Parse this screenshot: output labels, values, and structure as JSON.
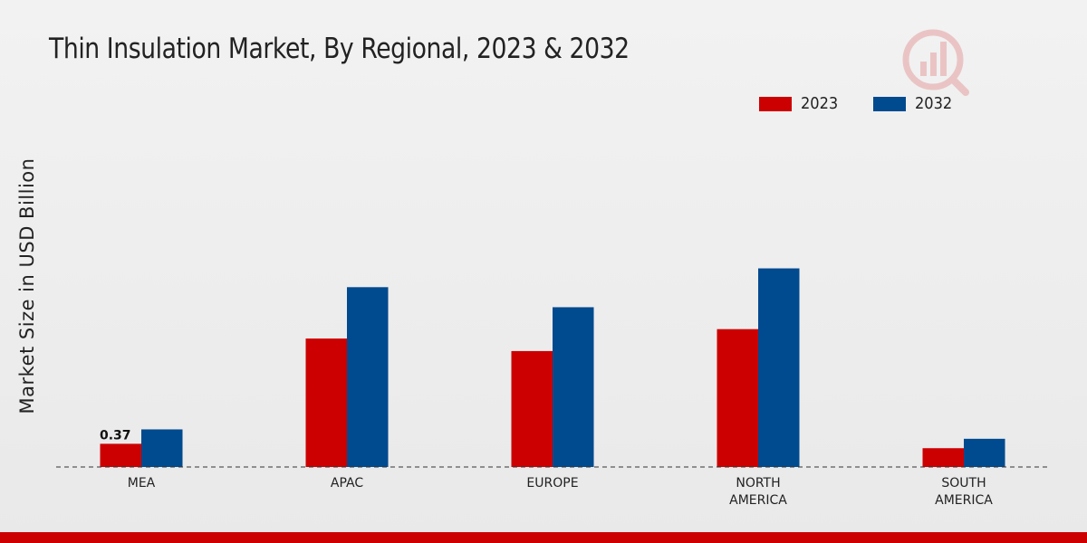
{
  "chart_data": {
    "type": "bar",
    "title": "Thin Insulation Market, By Regional, 2023 & 2032",
    "ylabel": "Market Size in USD Billion",
    "xlabel": "",
    "categories": [
      [
        "MEA"
      ],
      [
        "APAC"
      ],
      [
        "EUROPE"
      ],
      [
        "NORTH",
        "AMERICA"
      ],
      [
        "SOUTH",
        "AMERICA"
      ]
    ],
    "series": [
      {
        "name": "2023",
        "color": "#cc0000",
        "values": [
          0.37,
          2.05,
          1.85,
          2.2,
          0.3
        ]
      },
      {
        "name": "2032",
        "color": "#004a8f",
        "values": [
          0.6,
          2.87,
          2.55,
          3.17,
          0.45
        ]
      }
    ],
    "ylim": [
      0,
      5.2
    ],
    "grid": false,
    "legend": "top-right",
    "data_labels": [
      {
        "series": 0,
        "index": 0,
        "text": "0.37"
      }
    ]
  },
  "logo": {
    "icon": "market-research-logo-icon",
    "color": "#cc0000"
  }
}
